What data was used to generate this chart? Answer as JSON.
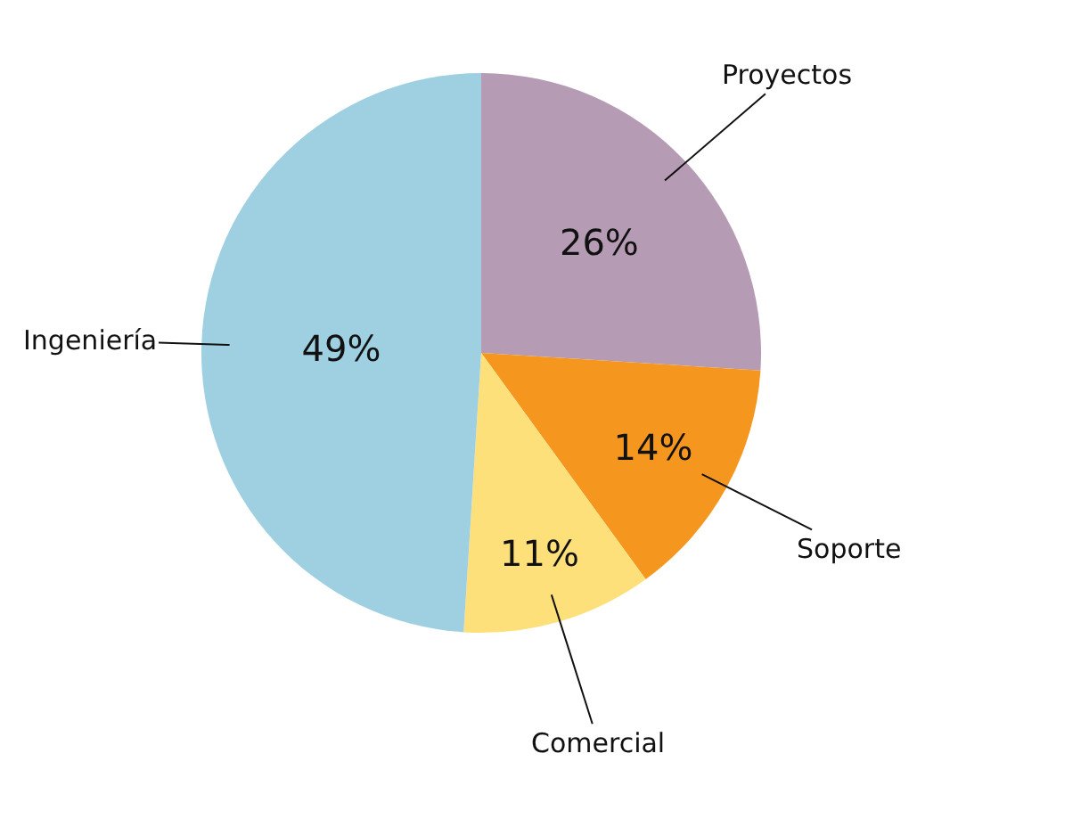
{
  "chart_data": {
    "type": "pie",
    "categories": [
      "Proyectos",
      "Soporte",
      "Comercial",
      "Ingeniería"
    ],
    "values": [
      26,
      14,
      11,
      49
    ],
    "value_labels": [
      "26%",
      "14%",
      "11%",
      "49%"
    ],
    "colors": [
      "#b59bb4",
      "#f5961e",
      "#fde07a",
      "#9fd0e2"
    ]
  }
}
